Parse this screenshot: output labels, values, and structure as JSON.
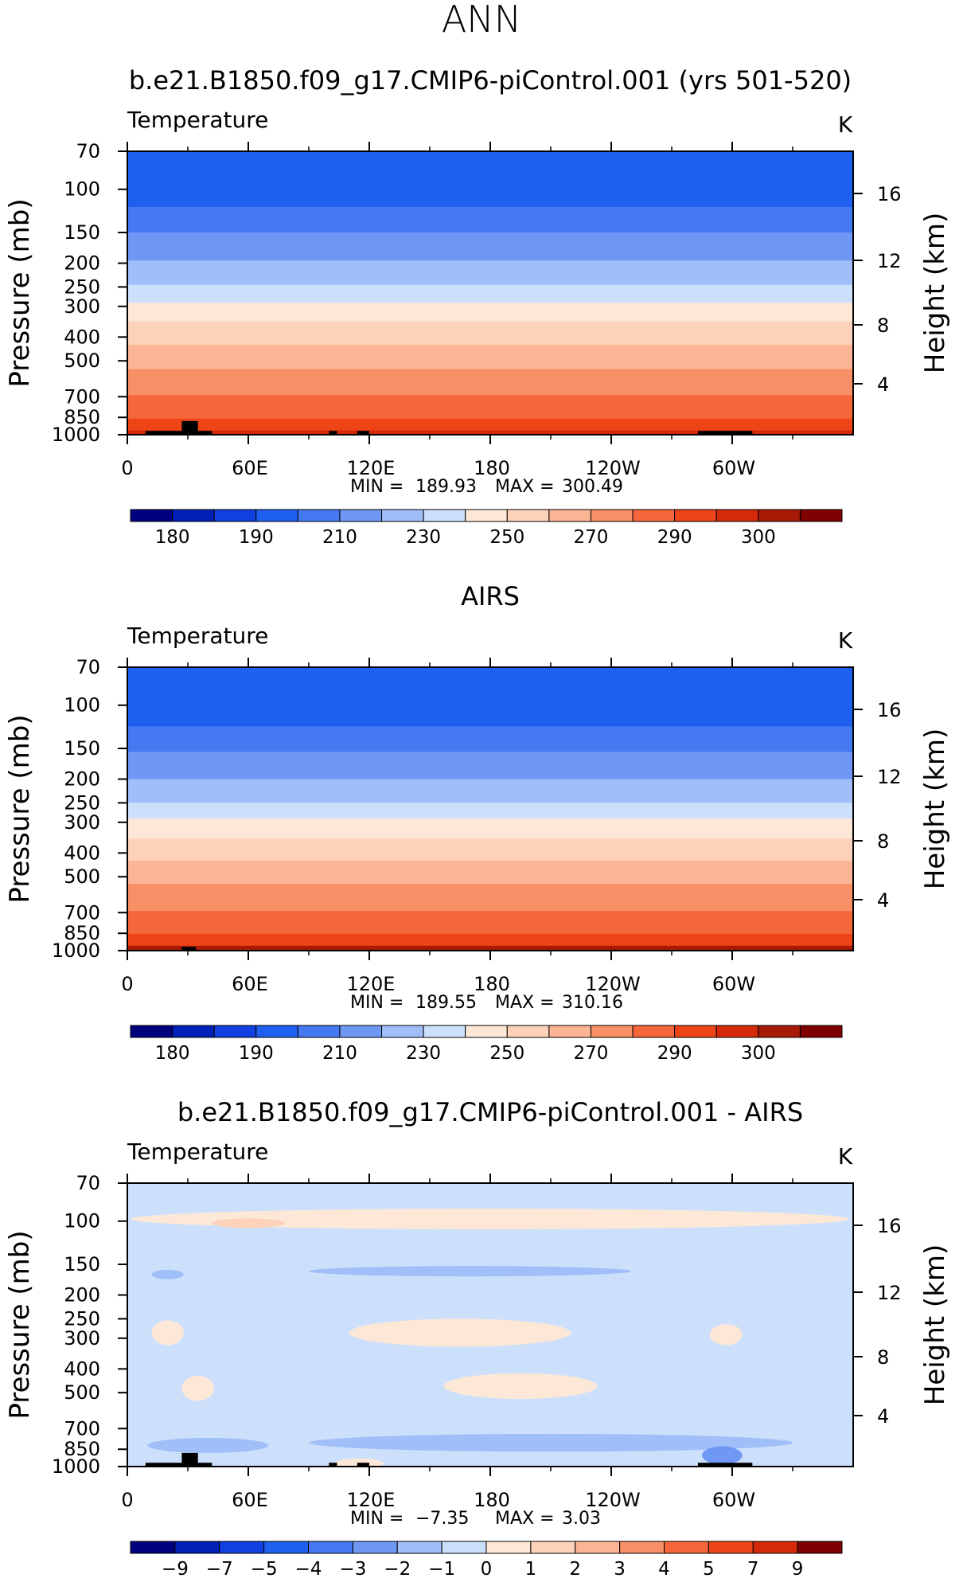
{
  "page_title": "ANN",
  "chart_data": [
    {
      "type": "heatmap",
      "title": "b.e21.B1850.f09_g17.CMIP6-piControl.001 (yrs 501-520)",
      "variable": "Temperature",
      "units": "K",
      "ylabel": "Pressure (mb)",
      "ylabel_right": "Height (km)",
      "xticks": [
        "0",
        "60E",
        "120E",
        "180",
        "120W",
        "60W"
      ],
      "pressure_ticks": [
        "70",
        "100",
        "150",
        "200",
        "250",
        "300",
        "400",
        "500",
        "700",
        "850",
        "1000"
      ],
      "height_ticks": [
        "16",
        "12",
        "8",
        "4"
      ],
      "min_label": "MIN =",
      "min_value": "189.93",
      "max_label": "MAX =",
      "max_value": "300.49",
      "colorbar_labels": [
        "180",
        "190",
        "210",
        "230",
        "250",
        "270",
        "290",
        "300"
      ],
      "colorbar_colors": [
        "#00007f",
        "#0020b8",
        "#1040e0",
        "#2060f0",
        "#4479f2",
        "#6f98f4",
        "#a0bef8",
        "#cde0fb",
        "#fde8d8",
        "#fcd2b8",
        "#fbb594",
        "#f88f66",
        "#f5663a",
        "#ee4518",
        "#d42a0a",
        "#a81a06",
        "#7f0000"
      ],
      "bands": [
        {
          "p_top": 70,
          "p_bot": 118,
          "color": "#2060f0"
        },
        {
          "p_top": 118,
          "p_bot": 150,
          "color": "#4479f2"
        },
        {
          "p_top": 150,
          "p_bot": 195,
          "color": "#6f98f4"
        },
        {
          "p_top": 195,
          "p_bot": 245,
          "color": "#a0bef8"
        },
        {
          "p_top": 245,
          "p_bot": 290,
          "color": "#cde0fb"
        },
        {
          "p_top": 290,
          "p_bot": 345,
          "color": "#fde8d8"
        },
        {
          "p_top": 345,
          "p_bot": 430,
          "color": "#fcd2b8"
        },
        {
          "p_top": 430,
          "p_bot": 540,
          "color": "#fbb594"
        },
        {
          "p_top": 540,
          "p_bot": 690,
          "color": "#f88f66"
        },
        {
          "p_top": 690,
          "p_bot": 860,
          "color": "#f5663a"
        },
        {
          "p_top": 860,
          "p_bot": 960,
          "color": "#ee4518"
        },
        {
          "p_top": 960,
          "p_bot": 1000,
          "color": "#d42a0a"
        }
      ],
      "terrain": [
        {
          "lon0": 9,
          "lon1": 27,
          "p_top": 965
        },
        {
          "lon0": 27,
          "lon1": 35,
          "p_top": 880
        },
        {
          "lon0": 35,
          "lon1": 42,
          "p_top": 965
        },
        {
          "lon0": 100,
          "lon1": 104,
          "p_top": 965
        },
        {
          "lon0": 114,
          "lon1": 120,
          "p_top": 965
        },
        {
          "lon0": 283,
          "lon1": 310,
          "p_top": 965
        }
      ]
    },
    {
      "type": "heatmap",
      "title": "AIRS",
      "variable": "Temperature",
      "units": "K",
      "ylabel": "Pressure (mb)",
      "ylabel_right": "Height (km)",
      "xticks": [
        "0",
        "60E",
        "120E",
        "180",
        "120W",
        "60W"
      ],
      "pressure_ticks": [
        "70",
        "100",
        "150",
        "200",
        "250",
        "300",
        "400",
        "500",
        "700",
        "850",
        "1000"
      ],
      "height_ticks": [
        "16",
        "12",
        "8",
        "4"
      ],
      "min_label": "MIN =",
      "min_value": "189.55",
      "max_label": "MAX =",
      "max_value": "310.16",
      "colorbar_labels": [
        "180",
        "190",
        "210",
        "230",
        "250",
        "270",
        "290",
        "300"
      ],
      "colorbar_colors": [
        "#00007f",
        "#0020b8",
        "#1040e0",
        "#2060f0",
        "#4479f2",
        "#6f98f4",
        "#a0bef8",
        "#cde0fb",
        "#fde8d8",
        "#fcd2b8",
        "#fbb594",
        "#f88f66",
        "#f5663a",
        "#ee4518",
        "#d42a0a",
        "#a81a06",
        "#7f0000"
      ],
      "bands": [
        {
          "p_top": 70,
          "p_bot": 122,
          "color": "#2060f0"
        },
        {
          "p_top": 122,
          "p_bot": 155,
          "color": "#4479f2"
        },
        {
          "p_top": 155,
          "p_bot": 200,
          "color": "#6f98f4"
        },
        {
          "p_top": 200,
          "p_bot": 250,
          "color": "#a0bef8"
        },
        {
          "p_top": 250,
          "p_bot": 290,
          "color": "#cde0fb"
        },
        {
          "p_top": 290,
          "p_bot": 350,
          "color": "#fde8d8"
        },
        {
          "p_top": 350,
          "p_bot": 430,
          "color": "#fcd2b8"
        },
        {
          "p_top": 430,
          "p_bot": 535,
          "color": "#fbb594"
        },
        {
          "p_top": 535,
          "p_bot": 690,
          "color": "#f88f66"
        },
        {
          "p_top": 690,
          "p_bot": 855,
          "color": "#f5663a"
        },
        {
          "p_top": 855,
          "p_bot": 955,
          "color": "#ee4518"
        },
        {
          "p_top": 955,
          "p_bot": 1000,
          "color": "#a81a06"
        }
      ],
      "terrain": [
        {
          "lon0": 27,
          "lon1": 34,
          "p_top": 965
        }
      ]
    },
    {
      "type": "heatmap",
      "title": "b.e21.B1850.f09_g17.CMIP6-piControl.001 - AIRS",
      "variable": "Temperature",
      "units": "K",
      "ylabel": "Pressure (mb)",
      "ylabel_right": "Height (km)",
      "xticks": [
        "0",
        "60E",
        "120E",
        "180",
        "120W",
        "60W"
      ],
      "pressure_ticks": [
        "70",
        "100",
        "150",
        "200",
        "250",
        "300",
        "400",
        "500",
        "700",
        "850",
        "1000"
      ],
      "height_ticks": [
        "16",
        "12",
        "8",
        "4"
      ],
      "min_label": "MIN =",
      "min_value": "−7.35",
      "max_label": "MAX =",
      "max_value": "3.03",
      "colorbar_labels": [
        "−9",
        "−7",
        "−5",
        "−4",
        "−3",
        "−2",
        "−1",
        "0",
        "1",
        "2",
        "3",
        "4",
        "5",
        "7",
        "9"
      ],
      "colorbar_colors": [
        "#00007f",
        "#0020b8",
        "#1040e0",
        "#2060f0",
        "#4479f2",
        "#6f98f4",
        "#a0bef8",
        "#cde0fb",
        "#fde8d8",
        "#fcd2b8",
        "#fbb594",
        "#f88f66",
        "#f5663a",
        "#ee4518",
        "#d42a0a",
        "#7f0000"
      ],
      "background_color": "#cde0fb",
      "patches": [
        {
          "lon": 180,
          "p": 98,
          "rlon": 178,
          "rp": 10,
          "color": "#fde8d8"
        },
        {
          "lon": 60,
          "p": 102,
          "rlon": 18,
          "rp": 4,
          "color": "#fcd2b8"
        },
        {
          "lon": 170,
          "p": 160,
          "rlon": 80,
          "rp": 8,
          "color": "#a0bef8"
        },
        {
          "lon": 20,
          "p": 165,
          "rlon": 8,
          "rp": 6,
          "color": "#a0bef8"
        },
        {
          "lon": 165,
          "p": 285,
          "rlon": 55,
          "rp": 40,
          "color": "#fde8d8"
        },
        {
          "lon": 20,
          "p": 285,
          "rlon": 8,
          "rp": 35,
          "color": "#fde8d8"
        },
        {
          "lon": 297,
          "p": 290,
          "rlon": 8,
          "rp": 30,
          "color": "#fde8d8"
        },
        {
          "lon": 195,
          "p": 470,
          "rlon": 38,
          "rp": 60,
          "color": "#fde8d8"
        },
        {
          "lon": 35,
          "p": 480,
          "rlon": 8,
          "rp": 60,
          "color": "#fde8d8"
        },
        {
          "lon": 210,
          "p": 800,
          "rlon": 120,
          "rp": 70,
          "color": "#a0bef8"
        },
        {
          "lon": 40,
          "p": 820,
          "rlon": 30,
          "rp": 60,
          "color": "#a0bef8"
        },
        {
          "lon": 295,
          "p": 900,
          "rlon": 10,
          "rp": 80,
          "color": "#6f98f4"
        },
        {
          "lon": 115,
          "p": 970,
          "rlon": 12,
          "rp": 25,
          "color": "#fde8d8"
        }
      ],
      "terrain": [
        {
          "lon0": 9,
          "lon1": 27,
          "p_top": 965
        },
        {
          "lon0": 27,
          "lon1": 35,
          "p_top": 880
        },
        {
          "lon0": 35,
          "lon1": 42,
          "p_top": 965
        },
        {
          "lon0": 100,
          "lon1": 104,
          "p_top": 965
        },
        {
          "lon0": 114,
          "lon1": 120,
          "p_top": 965
        },
        {
          "lon0": 283,
          "lon1": 310,
          "p_top": 965
        }
      ]
    }
  ]
}
